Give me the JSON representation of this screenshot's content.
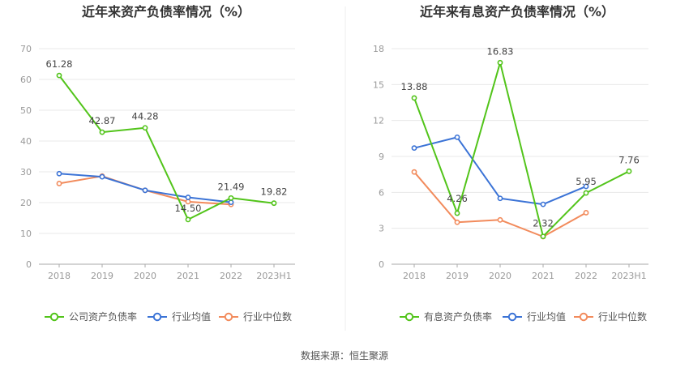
{
  "source_label": "数据来源：恒生聚源",
  "chart_data": [
    {
      "type": "line",
      "title": "近年来资产负债率情况（%）",
      "categories": [
        "2018",
        "2019",
        "2020",
        "2021",
        "2022",
        "2023H1"
      ],
      "ylim": [
        0,
        70
      ],
      "yticks": [
        0,
        10,
        20,
        30,
        40,
        50,
        60,
        70
      ],
      "grid": true,
      "legend_position": "bottom",
      "series": [
        {
          "name": "公司资产负债率",
          "color": "#52c41a",
          "values": [
            61.28,
            42.87,
            44.28,
            14.5,
            21.49,
            19.82
          ],
          "labels": [
            "61.28",
            "42.87",
            "44.28",
            "14.50",
            "21.49",
            "19.82"
          ]
        },
        {
          "name": "行业均值",
          "color": "#3b73d6",
          "values": [
            29.4,
            28.4,
            24.0,
            21.7,
            20.1,
            null
          ]
        },
        {
          "name": "行业中位数",
          "color": "#f28b5c",
          "values": [
            26.2,
            28.6,
            24.0,
            20.3,
            19.4,
            null
          ]
        }
      ]
    },
    {
      "type": "line",
      "title": "近年来有息资产负债率情况（%）",
      "categories": [
        "2018",
        "2019",
        "2020",
        "2021",
        "2022",
        "2023H1"
      ],
      "ylim": [
        0,
        18
      ],
      "yticks": [
        0,
        3,
        6,
        9,
        12,
        15,
        18
      ],
      "grid": true,
      "legend_position": "bottom",
      "series": [
        {
          "name": "有息资产负债率",
          "color": "#52c41a",
          "values": [
            13.88,
            4.26,
            16.83,
            2.32,
            5.95,
            7.76
          ],
          "labels": [
            "13.88",
            "4.26",
            "16.83",
            "2.32",
            "5.95",
            "7.76"
          ]
        },
        {
          "name": "行业均值",
          "color": "#3b73d6",
          "values": [
            9.7,
            10.6,
            5.5,
            5.0,
            6.5,
            null
          ]
        },
        {
          "name": "行业中位数",
          "color": "#f28b5c",
          "values": [
            7.7,
            3.5,
            3.7,
            2.3,
            4.3,
            null
          ]
        }
      ]
    }
  ]
}
